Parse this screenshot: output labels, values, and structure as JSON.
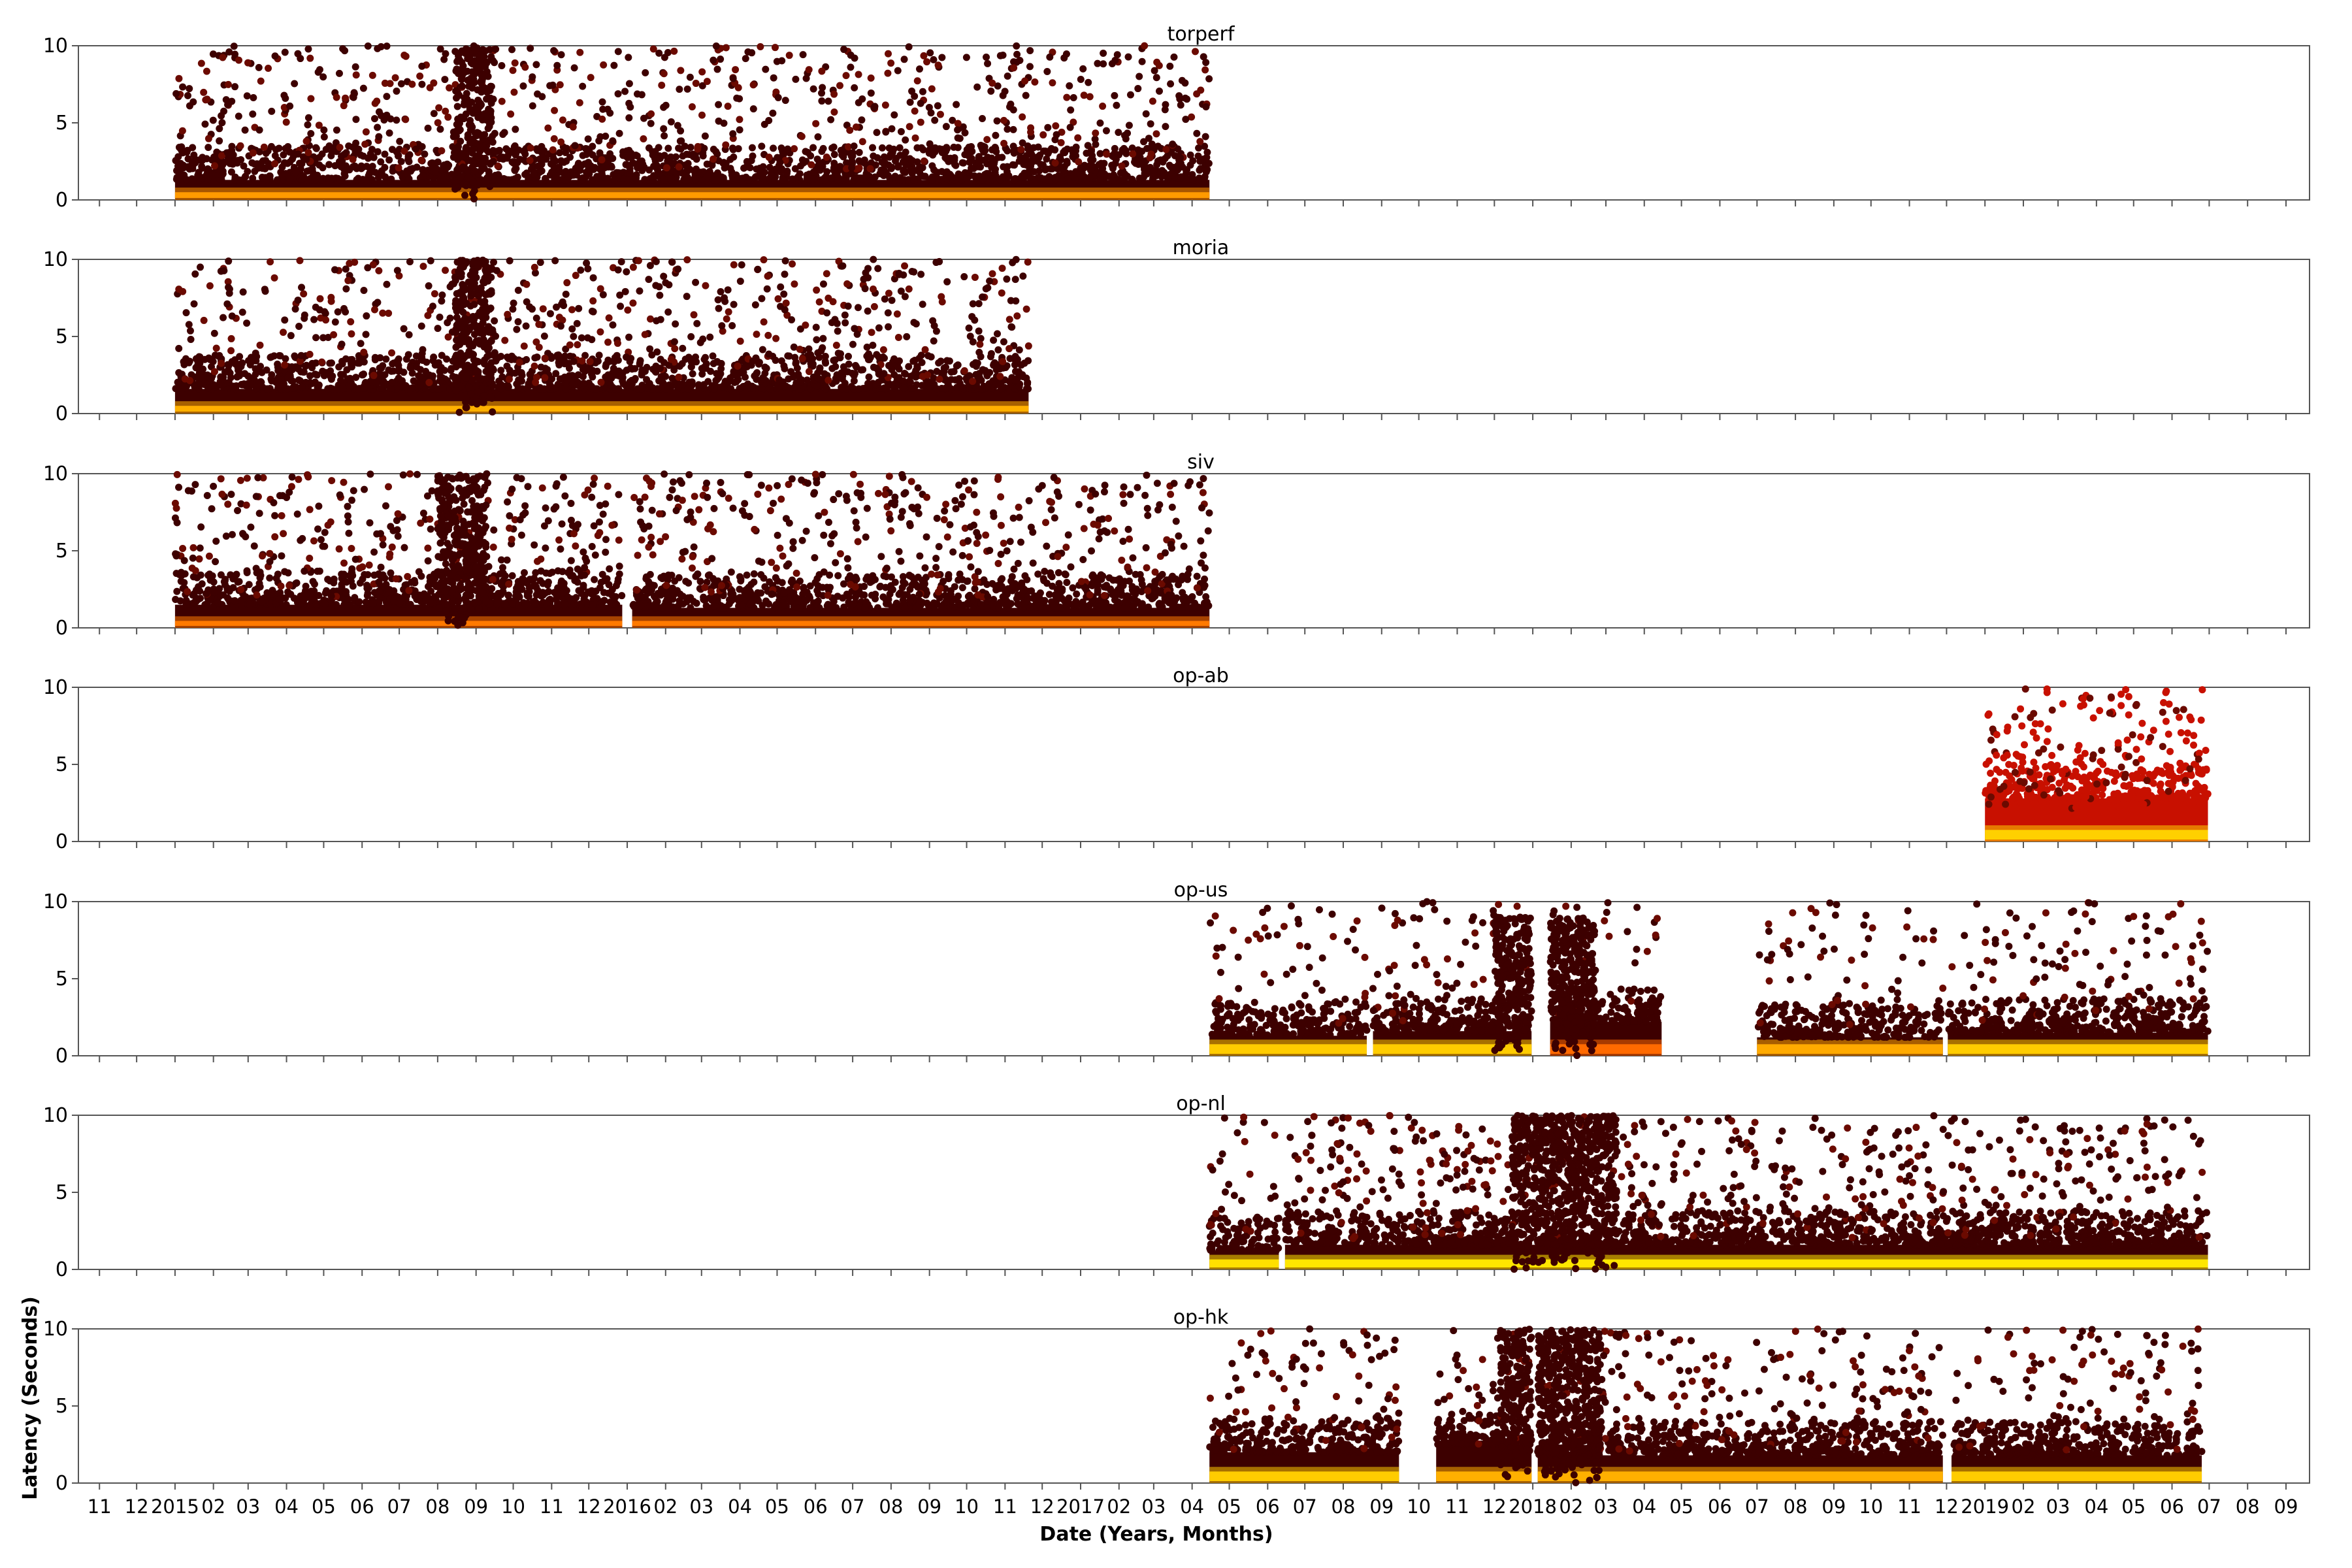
{
  "chart_data": {
    "type": "scatter",
    "xlabel": "Date (Years, Months)",
    "ylabel": "Latency (Seconds)",
    "xlim": [
      "2014-10-15",
      "2019-09-20"
    ],
    "ylim": [
      0,
      10
    ],
    "yticks": [
      0,
      5,
      10
    ],
    "x_tick_labels": [
      "11",
      "12",
      "2015",
      "02",
      "03",
      "04",
      "05",
      "06",
      "07",
      "08",
      "09",
      "10",
      "11",
      "12",
      "2016",
      "02",
      "03",
      "04",
      "05",
      "06",
      "07",
      "08",
      "09",
      "10",
      "11",
      "12",
      "2017",
      "02",
      "03",
      "04",
      "05",
      "06",
      "07",
      "08",
      "09",
      "10",
      "11",
      "12",
      "2018",
      "02",
      "03",
      "04",
      "05",
      "06",
      "07",
      "08",
      "09",
      "10",
      "11",
      "12",
      "2019",
      "02",
      "03",
      "04",
      "05",
      "06",
      "07",
      "08",
      "09"
    ],
    "colormap": [
      "#3d0000",
      "#6b0a00",
      "#b01800",
      "#e03a00",
      "#ff8c00",
      "#ffe600",
      "#ffff80"
    ],
    "panels": [
      {
        "name": "torperf",
        "segments": [
          {
            "start": "2015-01-01",
            "end": "2017-04-15",
            "floor": 0.35,
            "band": 1.3,
            "core_color": "#ff9a00",
            "sparse": 1.0,
            "bursts": [
              {
                "start": "2015-08-15",
                "end": "2015-09-15",
                "max": 10
              }
            ]
          }
        ]
      },
      {
        "name": "moria",
        "segments": [
          {
            "start": "2015-01-01",
            "end": "2016-11-20",
            "floor": 0.35,
            "band": 1.6,
            "core_color": "#ffb000",
            "sparse": 1.0,
            "bursts": [
              {
                "start": "2015-08-15",
                "end": "2015-09-15",
                "max": 10
              }
            ]
          }
        ]
      },
      {
        "name": "siv",
        "segments": [
          {
            "start": "2015-01-01",
            "end": "2015-12-28",
            "floor": 0.3,
            "band": 1.5,
            "core_color": "#ff7a00",
            "sparse": 1.0,
            "bursts": [
              {
                "start": "2015-08-01",
                "end": "2015-09-10",
                "max": 10
              }
            ]
          },
          {
            "start": "2016-01-05",
            "end": "2017-04-15",
            "floor": 0.3,
            "band": 1.3,
            "core_color": "#ff7a00",
            "sparse": 1.0,
            "bursts": []
          }
        ]
      },
      {
        "name": "op-ab",
        "segments": [
          {
            "start": "2019-01-01",
            "end": "2019-06-30",
            "floor": 0.6,
            "band": 2.8,
            "core_color": "#ffd000",
            "dot_color": "#c81000",
            "sparse": 1.2,
            "bursts": []
          }
        ]
      },
      {
        "name": "op-us",
        "segments": [
          {
            "start": "2017-04-15",
            "end": "2017-08-20",
            "floor": 0.6,
            "band": 1.3,
            "core_color": "#ffcc00",
            "sparse": 0.5,
            "bursts": []
          },
          {
            "start": "2017-08-25",
            "end": "2017-12-31",
            "floor": 0.6,
            "band": 1.6,
            "core_color": "#ffcc00",
            "sparse": 0.6,
            "bursts": [
              {
                "start": "2017-12-01",
                "end": "2017-12-31",
                "max": 9
              }
            ]
          },
          {
            "start": "2018-01-15",
            "end": "2018-04-15",
            "floor": 0.6,
            "band": 2.2,
            "core_color": "#ff6a00",
            "sparse": 0.7,
            "bursts": [
              {
                "start": "2018-01-15",
                "end": "2018-02-20",
                "max": 9
              }
            ]
          },
          {
            "start": "2018-07-01",
            "end": "2018-11-28",
            "floor": 0.6,
            "band": 1.2,
            "core_color": "#ffaa00",
            "sparse": 0.5,
            "bursts": []
          },
          {
            "start": "2018-12-02",
            "end": "2019-06-30",
            "floor": 0.6,
            "band": 1.5,
            "core_color": "#ffcc00",
            "sparse": 0.6,
            "bursts": []
          }
        ]
      },
      {
        "name": "op-nl",
        "segments": [
          {
            "start": "2017-04-15",
            "end": "2017-06-10",
            "floor": 0.5,
            "band": 1.2,
            "core_color": "#ffe000",
            "sparse": 0.6,
            "bursts": []
          },
          {
            "start": "2017-06-15",
            "end": "2019-06-30",
            "floor": 0.5,
            "band": 1.6,
            "core_color": "#ffe600",
            "sparse": 0.9,
            "bursts": [
              {
                "start": "2017-12-15",
                "end": "2018-03-10",
                "max": 10
              }
            ]
          }
        ]
      },
      {
        "name": "op-hk",
        "segments": [
          {
            "start": "2017-04-15",
            "end": "2017-09-15",
            "floor": 0.6,
            "band": 2.0,
            "core_color": "#ffcc00",
            "sparse": 0.7,
            "bursts": []
          },
          {
            "start": "2017-10-15",
            "end": "2017-12-31",
            "floor": 0.6,
            "band": 2.5,
            "core_color": "#ffb000",
            "sparse": 0.7,
            "bursts": [
              {
                "start": "2017-12-05",
                "end": "2017-12-31",
                "max": 10
              }
            ]
          },
          {
            "start": "2018-01-05",
            "end": "2018-11-28",
            "floor": 0.6,
            "band": 1.8,
            "core_color": "#ffb000",
            "sparse": 0.8,
            "bursts": [
              {
                "start": "2018-01-05",
                "end": "2018-02-25",
                "max": 10
              }
            ]
          },
          {
            "start": "2018-12-05",
            "end": "2019-06-25",
            "floor": 0.6,
            "band": 1.8,
            "core_color": "#ffcc00",
            "sparse": 0.7,
            "bursts": []
          }
        ]
      }
    ]
  }
}
